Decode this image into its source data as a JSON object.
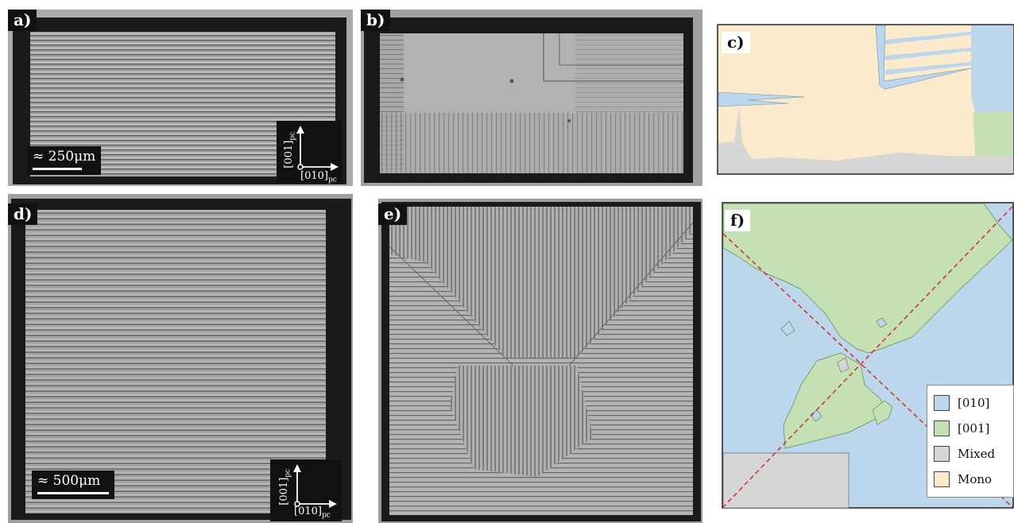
{
  "panels": {
    "a": {
      "label": "a)"
    },
    "b": {
      "label": "b)"
    },
    "c": {
      "label": "c)"
    },
    "d": {
      "label": "d)"
    },
    "e": {
      "label": "e)"
    },
    "f": {
      "label": "f)"
    }
  },
  "scalebars": {
    "a": "≈ 250μm",
    "d": "≈ 500μm"
  },
  "axes": {
    "vertical": "[001]",
    "horizontal": "[010]",
    "subscript": "pc"
  },
  "legend": [
    {
      "label": "[010]",
      "color": "#bcd6ec"
    },
    {
      "label": "[001]",
      "color": "#c5e0b4"
    },
    {
      "label": "Mixed",
      "color": "#d6d6d6"
    },
    {
      "label": "Mono",
      "color": "#fbeacb"
    }
  ],
  "colors": {
    "dashed_line": "#d0363a",
    "domain_010": "#bcd6ec",
    "domain_001": "#c5e0b4",
    "mixed": "#d6d6d6",
    "mono": "#fbeacb"
  }
}
